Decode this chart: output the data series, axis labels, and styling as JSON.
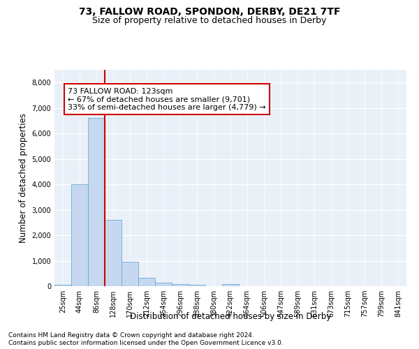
{
  "title": "73, FALLOW ROAD, SPONDON, DERBY, DE21 7TF",
  "subtitle": "Size of property relative to detached houses in Derby",
  "xlabel": "Distribution of detached houses by size in Derby",
  "ylabel": "Number of detached properties",
  "footnote1": "Contains HM Land Registry data © Crown copyright and database right 2024.",
  "footnote2": "Contains public sector information licensed under the Open Government Licence v3.0.",
  "bar_categories": [
    "25sqm",
    "44sqm",
    "86sqm",
    "128sqm",
    "170sqm",
    "212sqm",
    "254sqm",
    "296sqm",
    "338sqm",
    "380sqm",
    "422sqm",
    "464sqm",
    "506sqm",
    "547sqm",
    "589sqm",
    "631sqm",
    "673sqm",
    "715sqm",
    "757sqm",
    "799sqm",
    "841sqm"
  ],
  "bar_values": [
    50,
    4000,
    6600,
    2600,
    950,
    320,
    135,
    85,
    60,
    0,
    80,
    0,
    0,
    0,
    0,
    0,
    0,
    0,
    0,
    0,
    0
  ],
  "bar_color": "#c5d8f0",
  "bar_edge_color": "#6aaad4",
  "property_line_color": "#cc0000",
  "annotation_text": "73 FALLOW ROAD: 123sqm\n← 67% of detached houses are smaller (9,701)\n33% of semi-detached houses are larger (4,779) →",
  "annotation_box_color": "white",
  "annotation_box_edge_color": "#cc0000",
  "ylim": [
    0,
    8500
  ],
  "yticks": [
    0,
    1000,
    2000,
    3000,
    4000,
    5000,
    6000,
    7000,
    8000
  ],
  "background_color": "#eaf0f8",
  "grid_color": "white",
  "title_fontsize": 10,
  "subtitle_fontsize": 9,
  "axis_label_fontsize": 8.5,
  "tick_fontsize": 7,
  "annotation_fontsize": 8,
  "footnote_fontsize": 6.5
}
